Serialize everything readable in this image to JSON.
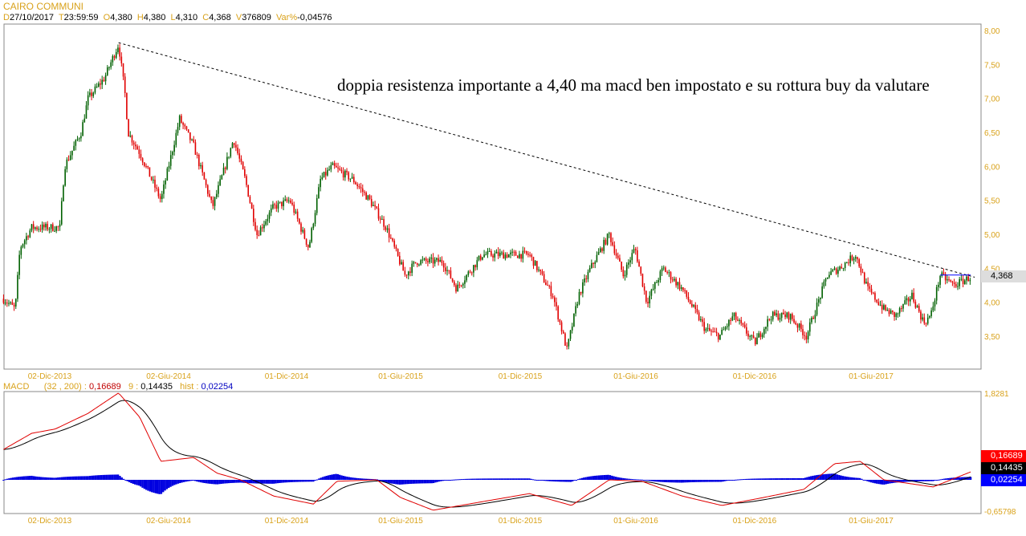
{
  "header": {
    "title": "CAIRO COMMUNI",
    "d_label": "D",
    "date": "27/10/2017",
    "t_label": "T",
    "time": "23:59:59",
    "o_label": "O",
    "open": "4,380",
    "h_label": "H",
    "high": "4,380",
    "l_label": "L",
    "low": "4,310",
    "c_label": "C",
    "close": "4,368",
    "v_label": "V",
    "volume": "376809",
    "var_label": "Var%",
    "var": "-0,04576"
  },
  "annotation": "doppia resistenza importante a 4,40 ma macd ben impostato e su rottura buy da valutare",
  "macd_header": {
    "label": "MACD",
    "params": "(32 , 200) :",
    "macd": "0,16689",
    "signal_label": "9 :",
    "signal": "0,14435",
    "hist_label": "hist :",
    "hist": "0,02254"
  },
  "colors": {
    "up": "#006000",
    "down": "#e00000",
    "axis": "#d9a21b",
    "hist": "#0000e0"
  },
  "chart_data": [
    {
      "type": "candlestick",
      "title": "CAIRO COMMUNI",
      "ylim": [
        3.2,
        8.0
      ],
      "y_ticks": [
        "8,00",
        "7,50",
        "7,00",
        "6,50",
        "6,00",
        "5,50",
        "5,00",
        "4,50",
        "4,00",
        "3,50"
      ],
      "x_ticks": [
        "02-Dic-2013",
        "02-Giu-2014",
        "01-Dic-2014",
        "01-Giu-2015",
        "01-Dic-2015",
        "01-Giu-2016",
        "01-Dic-2016",
        "01-Giu-2017"
      ],
      "last_price_label": "4,368",
      "price_path": [
        [
          2013.72,
          4.05
        ],
        [
          2013.77,
          3.9
        ],
        [
          2013.79,
          4.8
        ],
        [
          2013.84,
          5.1
        ],
        [
          2013.96,
          5.1
        ],
        [
          2013.98,
          6.0
        ],
        [
          2014.05,
          6.5
        ],
        [
          2014.08,
          7.0
        ],
        [
          2014.15,
          7.3
        ],
        [
          2014.21,
          7.8
        ],
        [
          2014.24,
          7.0
        ],
        [
          2014.25,
          6.5
        ],
        [
          2014.3,
          6.2
        ],
        [
          2014.39,
          5.5
        ],
        [
          2014.47,
          6.7
        ],
        [
          2014.53,
          6.3
        ],
        [
          2014.61,
          5.4
        ],
        [
          2014.7,
          6.4
        ],
        [
          2014.75,
          5.8
        ],
        [
          2014.8,
          5.0
        ],
        [
          2014.87,
          5.4
        ],
        [
          2014.94,
          5.5
        ],
        [
          2015.02,
          4.8
        ],
        [
          2015.07,
          5.8
        ],
        [
          2015.12,
          6.0
        ],
        [
          2015.21,
          5.8
        ],
        [
          2015.28,
          5.5
        ],
        [
          2015.35,
          5.1
        ],
        [
          2015.43,
          4.4
        ],
        [
          2015.48,
          4.6
        ],
        [
          2015.59,
          4.6
        ],
        [
          2015.65,
          4.2
        ],
        [
          2015.76,
          4.7
        ],
        [
          2015.84,
          4.7
        ],
        [
          2015.96,
          4.7
        ],
        [
          2016.06,
          4.1
        ],
        [
          2016.12,
          3.3
        ],
        [
          2016.17,
          4.1
        ],
        [
          2016.22,
          4.5
        ],
        [
          2016.3,
          5.0
        ],
        [
          2016.36,
          4.4
        ],
        [
          2016.41,
          4.8
        ],
        [
          2016.46,
          4.0
        ],
        [
          2016.53,
          4.5
        ],
        [
          2016.61,
          4.2
        ],
        [
          2016.71,
          3.6
        ],
        [
          2016.77,
          3.5
        ],
        [
          2016.83,
          3.8
        ],
        [
          2016.92,
          3.4
        ],
        [
          2016.99,
          3.8
        ],
        [
          2017.07,
          3.8
        ],
        [
          2017.14,
          3.5
        ],
        [
          2017.23,
          4.4
        ],
        [
          2017.28,
          4.5
        ],
        [
          2017.35,
          4.7
        ],
        [
          2017.4,
          4.2
        ],
        [
          2017.47,
          3.9
        ],
        [
          2017.52,
          3.8
        ],
        [
          2017.59,
          4.1
        ],
        [
          2017.64,
          3.7
        ],
        [
          2017.67,
          3.8
        ],
        [
          2017.71,
          4.4
        ],
        [
          2017.77,
          4.25
        ],
        [
          2017.84,
          4.37
        ]
      ],
      "trendline": [
        [
          2014.21,
          7.82
        ],
        [
          2017.84,
          4.38
        ]
      ],
      "resistance": {
        "value": 4.4,
        "from": 2017.71,
        "to": 2017.84
      }
    },
    {
      "type": "line",
      "title": "MACD (32, 200) 9",
      "ylim": [
        -0.65798,
        1.8281
      ],
      "y_ticks": [
        "1,8281",
        "-0,65798"
      ],
      "x_ticks": [
        "02-Dic-2013",
        "02-Giu-2014",
        "01-Dic-2014",
        "01-Giu-2015",
        "01-Dic-2015",
        "01-Giu-2016",
        "01-Dic-2016",
        "01-Giu-2017"
      ],
      "badges": [
        "0,16689",
        "0,14435",
        "0,02254"
      ],
      "macd_path": [
        [
          2013.72,
          0.64
        ],
        [
          2013.84,
          0.98
        ],
        [
          2013.94,
          1.07
        ],
        [
          2014.08,
          1.4
        ],
        [
          2014.21,
          1.83
        ],
        [
          2014.3,
          1.32
        ],
        [
          2014.39,
          0.39
        ],
        [
          2014.53,
          0.47
        ],
        [
          2014.63,
          0.14
        ],
        [
          2014.73,
          0
        ],
        [
          2014.87,
          -0.34
        ],
        [
          2015.04,
          -0.51
        ],
        [
          2015.14,
          -0.03
        ],
        [
          2015.31,
          0
        ],
        [
          2015.41,
          -0.37
        ],
        [
          2015.55,
          -0.64
        ],
        [
          2015.76,
          -0.46
        ],
        [
          2015.96,
          -0.29
        ],
        [
          2016.14,
          -0.54
        ],
        [
          2016.3,
          0
        ],
        [
          2016.44,
          -0.03
        ],
        [
          2016.61,
          -0.34
        ],
        [
          2016.78,
          -0.54
        ],
        [
          2016.96,
          -0.37
        ],
        [
          2017.13,
          -0.2
        ],
        [
          2017.26,
          0.34
        ],
        [
          2017.37,
          0.39
        ],
        [
          2017.47,
          0
        ],
        [
          2017.68,
          -0.15
        ],
        [
          2017.84,
          0.167
        ]
      ]
    }
  ]
}
